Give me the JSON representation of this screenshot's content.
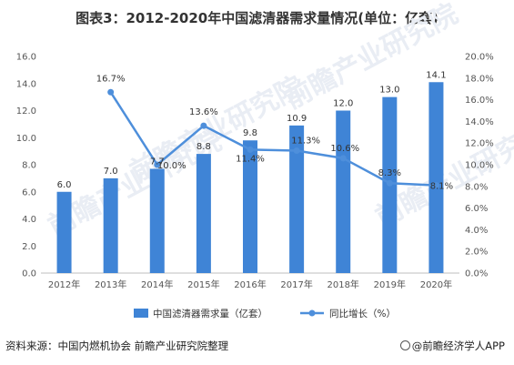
{
  "title": "图表3：2012-2020年中国滤清器需求量情况(单位：亿套)",
  "watermark": "前瞻产业研究院",
  "footer": {
    "source": "资料来源：中国内燃机协会 前瞻产业研究院整理",
    "brand": "@前瞻经济学人APP"
  },
  "chart_data": {
    "type": "bar+line",
    "categories": [
      "2012年",
      "2013年",
      "2014年",
      "2015年",
      "2016年",
      "2017年",
      "2018年",
      "2019年",
      "2020年"
    ],
    "series": [
      {
        "name": "中国滤清器需求量（亿套）",
        "type": "bar",
        "axis": "left",
        "color": "#3f84d6",
        "values": [
          6.0,
          7.0,
          7.7,
          8.8,
          9.8,
          10.9,
          12.0,
          13.0,
          14.1
        ],
        "labels": [
          "6.0",
          "7.0",
          "7.7",
          "8.8",
          "9.8",
          "10.9",
          "12.0",
          "13.0",
          "14.1"
        ]
      },
      {
        "name": "同比增长（%）",
        "type": "line",
        "axis": "right",
        "color": "#4e8fdb",
        "values": [
          null,
          16.7,
          10.0,
          13.6,
          11.4,
          11.3,
          10.6,
          8.3,
          8.1
        ],
        "labels": [
          "",
          "16.7%",
          "10.0%",
          "13.6%",
          "11.4%",
          "11.3%",
          "10.6%",
          "8.3%",
          "8.1%"
        ]
      }
    ],
    "y_left": {
      "min": 0,
      "max": 16,
      "step": 2,
      "ticks": [
        "0.0",
        "2.0",
        "4.0",
        "6.0",
        "8.0",
        "10.0",
        "12.0",
        "14.0",
        "16.0"
      ]
    },
    "y_right": {
      "min": 0,
      "max": 20,
      "step": 2,
      "ticks": [
        "0.0%",
        "2.0%",
        "4.0%",
        "6.0%",
        "8.0%",
        "10.0%",
        "12.0%",
        "14.0%",
        "16.0%",
        "18.0%",
        "20.0%"
      ]
    },
    "grid": false,
    "legend_position": "bottom"
  }
}
